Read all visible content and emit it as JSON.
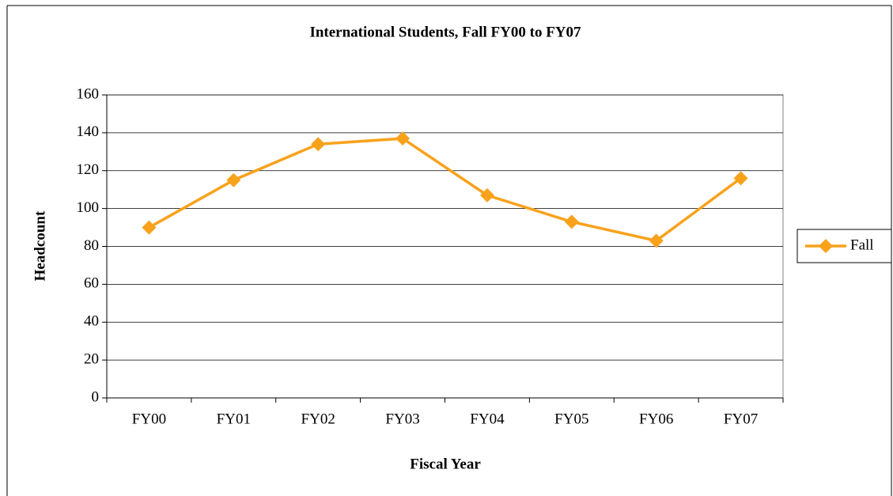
{
  "chart_data": {
    "type": "line",
    "title": "International Students, Fall FY00 to FY07",
    "x_label": "Fiscal Year",
    "y_label": "Headcount",
    "categories": [
      "FY00",
      "FY01",
      "FY02",
      "FY03",
      "FY04",
      "FY05",
      "FY06",
      "FY07"
    ],
    "series": [
      {
        "name": "Fall",
        "color": "#f8a21c",
        "values": [
          90,
          115,
          134,
          137,
          107,
          93,
          83,
          116
        ]
      }
    ],
    "ylim": [
      0,
      160
    ],
    "yticks": [
      0,
      20,
      40,
      60,
      80,
      100,
      120,
      140,
      160
    ],
    "grid": true,
    "legend": "right"
  }
}
